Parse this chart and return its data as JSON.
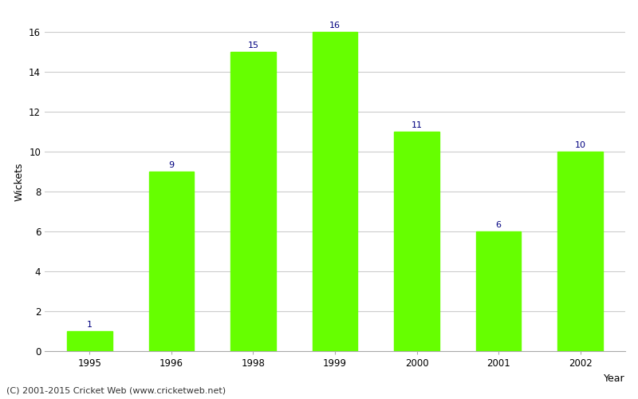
{
  "years": [
    "1995",
    "1996",
    "1998",
    "1999",
    "2000",
    "2001",
    "2002"
  ],
  "wickets": [
    1,
    9,
    15,
    16,
    11,
    6,
    10
  ],
  "bar_color": "#66ff00",
  "bar_edge_color": "#66ff00",
  "label_color": "#000080",
  "ylabel": "Wickets",
  "xlabel": "Year",
  "ylim": [
    0,
    17
  ],
  "yticks": [
    0,
    2,
    4,
    6,
    8,
    10,
    12,
    14,
    16
  ],
  "grid_color": "#cccccc",
  "background_color": "#ffffff",
  "footnote": "(C) 2001-2015 Cricket Web (www.cricketweb.net)",
  "label_fontsize": 8,
  "axis_label_fontsize": 9,
  "tick_fontsize": 8.5,
  "footnote_fontsize": 8
}
